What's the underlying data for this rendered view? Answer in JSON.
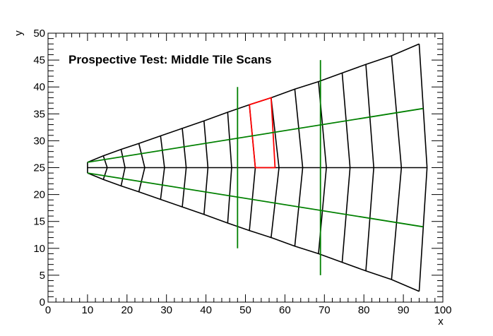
{
  "chart_data": {
    "type": "line",
    "title": "Prospective Test: Middle Tile Scans",
    "xlabel": "x",
    "ylabel": "y",
    "xlim": [
      0,
      100
    ],
    "ylim": [
      0,
      50
    ],
    "x_ticks": [
      0,
      10,
      20,
      30,
      40,
      50,
      60,
      70,
      80,
      90,
      100
    ],
    "y_ticks": [
      0,
      5,
      10,
      15,
      20,
      25,
      30,
      35,
      40,
      45,
      50
    ],
    "grid": false,
    "colors": {
      "outline": "#000000",
      "highlight": "#ff0000",
      "scan": "#008000"
    },
    "wedge": {
      "apex_left": [
        10,
        26
      ],
      "apex_right": [
        10,
        24
      ],
      "upper_edge": [
        [
          10,
          26
        ],
        [
          14,
          27.2
        ],
        [
          18.5,
          28.4
        ],
        [
          23,
          29.5
        ],
        [
          28.5,
          30.9
        ],
        [
          34,
          32.3
        ],
        [
          39.5,
          33.7
        ],
        [
          45.5,
          35.3
        ],
        [
          51,
          36.7
        ],
        [
          56.5,
          38
        ],
        [
          62.5,
          39.6
        ],
        [
          68.5,
          41
        ],
        [
          74.5,
          42.6
        ],
        [
          80.5,
          44.2
        ],
        [
          87,
          45.8
        ],
        [
          94,
          48
        ]
      ],
      "lower_edge": [
        [
          10,
          24
        ],
        [
          14,
          22.8
        ],
        [
          18.5,
          21.6
        ],
        [
          23,
          20.5
        ],
        [
          28.5,
          19.1
        ],
        [
          34,
          17.7
        ],
        [
          39.5,
          16.3
        ],
        [
          45.5,
          14.7
        ],
        [
          51,
          13.3
        ],
        [
          56.5,
          12
        ],
        [
          62.5,
          10.4
        ],
        [
          68.5,
          9
        ],
        [
          74.5,
          7.4
        ],
        [
          80.5,
          5.8
        ],
        [
          87,
          4.2
        ],
        [
          94,
          2
        ]
      ],
      "center_line": [
        [
          10,
          25
        ],
        [
          96,
          25
        ]
      ],
      "mid_points_x": [
        10,
        15,
        19.5,
        24.5,
        29.5,
        35,
        40.5,
        46.5,
        52.5,
        58.5,
        64.5,
        70.5,
        76.5,
        82.5,
        89.5,
        96
      ],
      "highlight_tile": [
        [
          51,
          36.7
        ],
        [
          56.5,
          38
        ],
        [
          57.5,
          25
        ],
        [
          52.5,
          25
        ],
        [
          51,
          36.7
        ]
      ]
    },
    "scan_lines": [
      {
        "points": [
          [
            10,
            26
          ],
          [
            95,
            36
          ]
        ]
      },
      {
        "points": [
          [
            10,
            24
          ],
          [
            95,
            14
          ]
        ]
      },
      {
        "points": [
          [
            48,
            40
          ],
          [
            48,
            10
          ]
        ]
      },
      {
        "points": [
          [
            69,
            45
          ],
          [
            69,
            5
          ]
        ]
      }
    ]
  }
}
